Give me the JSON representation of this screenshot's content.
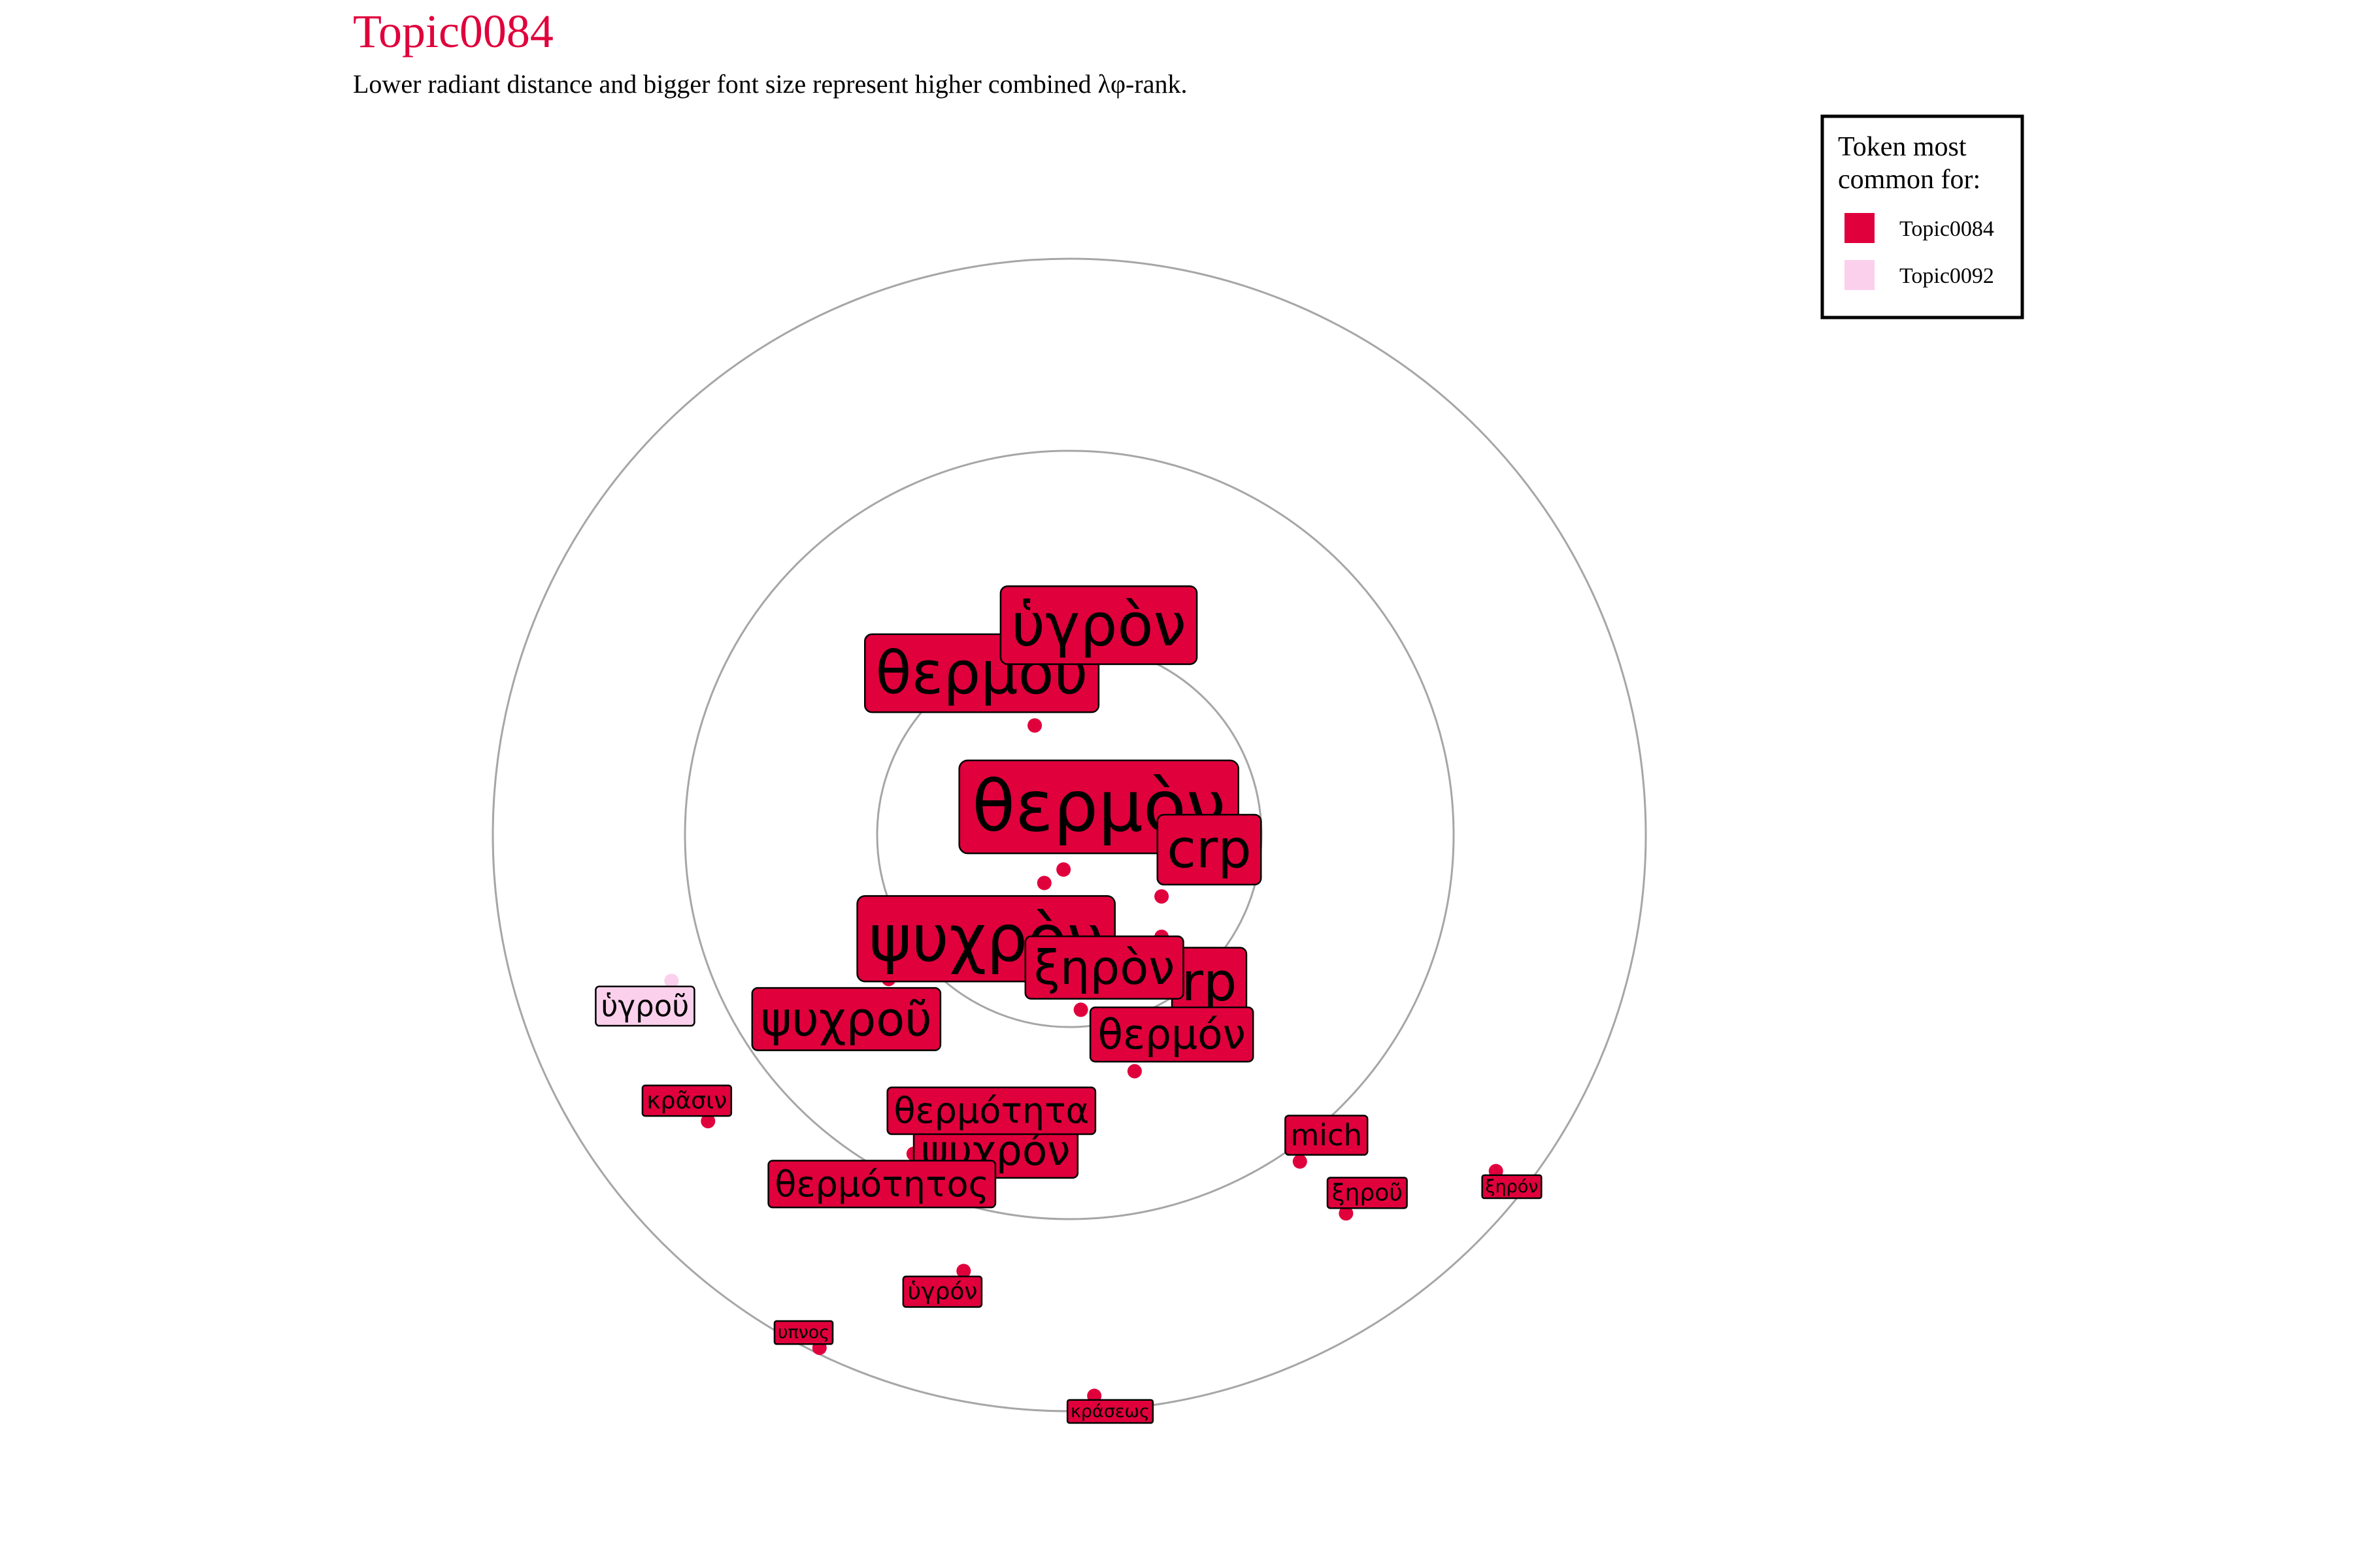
{
  "chart_data": {
    "type": "scatter",
    "title": "Topic0084",
    "subtitle": "Lower radiant distance and bigger font size represent higher combined λφ-rank.",
    "legend": {
      "title_lines": [
        "Token most",
        "common for:"
      ],
      "placement": "top-right",
      "entries": [
        {
          "name": "Topic0084",
          "color": "#e0003c"
        },
        {
          "name": "Topic0092",
          "color": "#fbd0ec"
        }
      ]
    },
    "rings": [
      1,
      2,
      3
    ],
    "grid": false,
    "points": [
      {
        "token": "θερμὸν",
        "topic": "Topic0084",
        "x": -0.03,
        "y": -0.18,
        "rank": 1
      },
      {
        "token": "ψυχρὸν",
        "topic": "Topic0084",
        "x": -0.13,
        "y": -0.25,
        "rank": 2
      },
      {
        "token": "θερμοῦ",
        "topic": "Topic0084",
        "x": -0.18,
        "y": 0.57,
        "rank": 3
      },
      {
        "token": "ὑγρὸν",
        "topic": "Topic0084",
        "x": 0.0,
        "y": 0.82,
        "rank": 3
      },
      {
        "token": "crp",
        "topic": "Topic0084",
        "x": 0.48,
        "y": -0.32,
        "rank": 4
      },
      {
        "token": "rp",
        "topic": "Topic0084",
        "x": 0.48,
        "y": -0.53,
        "rank": 4
      },
      {
        "token": "ξηρὸν",
        "topic": "Topic0084",
        "x": 0.06,
        "y": -0.91,
        "rank": 5
      },
      {
        "token": "ψυχροῦ",
        "topic": "Topic0084",
        "x": -0.94,
        "y": -0.75,
        "rank": 5
      },
      {
        "token": "θερμόν",
        "topic": "Topic0084",
        "x": 0.34,
        "y": -1.23,
        "rank": 6
      },
      {
        "token": "ψυχρόν",
        "topic": "Topic0084",
        "x": -0.19,
        "y": -1.46,
        "rank": 6
      },
      {
        "token": "θερμότητα",
        "topic": "Topic0084",
        "x": -0.24,
        "y": -1.6,
        "rank": 7
      },
      {
        "token": "θερμότητος",
        "topic": "Topic0084",
        "x": -0.81,
        "y": -1.66,
        "rank": 7
      },
      {
        "token": "mich",
        "topic": "Topic0084",
        "x": 1.2,
        "y": -1.7,
        "rank": 8
      },
      {
        "token": "ὑγροῦ",
        "topic": "Topic0092",
        "x": -2.07,
        "y": -0.76,
        "rank": 8
      },
      {
        "token": "κρᾶσιν",
        "topic": "Topic0084",
        "x": -1.88,
        "y": -1.49,
        "rank": 9
      },
      {
        "token": "ὑγρόν",
        "topic": "Topic0084",
        "x": -0.55,
        "y": -2.27,
        "rank": 9
      },
      {
        "token": "ξηροῦ",
        "topic": "Topic0084",
        "x": 1.44,
        "y": -1.97,
        "rank": 9
      },
      {
        "token": "ξηρόν",
        "topic": "Topic0084",
        "x": 2.22,
        "y": -1.75,
        "rank": 10
      },
      {
        "token": "υπνος",
        "topic": "Topic0084",
        "x": -1.3,
        "y": -2.67,
        "rank": 10
      },
      {
        "token": "κράσεως",
        "topic": "Topic0084",
        "x": 0.13,
        "y": -2.92,
        "rank": 10
      }
    ]
  }
}
